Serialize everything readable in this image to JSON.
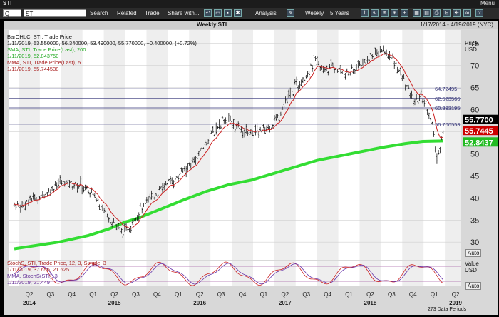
{
  "titlebar": {
    "app": "STI",
    "menu_label": "Menu"
  },
  "toolbar": {
    "symbol_type": "Q",
    "symbol": "STI",
    "search": "Search",
    "related": "Related",
    "trade": "Trade",
    "share": "Share with...",
    "analysis": "Analysis",
    "period": "Weekly",
    "range": "5 Years"
  },
  "chart_header": {
    "title": "Weekly STI",
    "date_range": "1/17/2014 - 4/19/2019 (NYC)"
  },
  "legend": {
    "bar": "BarOHLC, STI, Trade Price",
    "bar_values": "1/11/2019, 53.550000, 56.340000, 53.490000, 55.770000, +0.400000, (+0.72%)",
    "sma": "SMA, STI, Trade Price(Last), 200",
    "sma_value": "1/11/2019, 52.843750",
    "mma": "MMA, STI, Trade Price(Last), 5",
    "mma_value": "1/11/2019, 55.744538",
    "stoch": "StochS, STI, Trade Price, 12, 3, Simple, 3",
    "stoch_value": "1/11/2019, 37.656, 21.625",
    "mma_stoch": "MMA, StochS(STI), 3",
    "mma_stoch_value": "1/11/2019, 21.449"
  },
  "axis": {
    "price_label_1": "Price",
    "price_label_2": "USD",
    "value_label_1": "Value",
    "value_label_2": "USD",
    "auto": "Auto",
    "data_rows": "273 Data Periods"
  },
  "colors": {
    "price_bars": "#000000",
    "sma": "#33dd33",
    "mma": "#cc2222",
    "stoch_line": "#cc2222",
    "stoch_mma": "#6633aa",
    "last_price_box": "#000000",
    "mma_box": "#cc0000",
    "sma_box": "#22bb22"
  },
  "chart_data": {
    "type": "ohlc",
    "price_ylim": [
      26,
      78
    ],
    "price_ticks": [
      30,
      35,
      40,
      45,
      50,
      55,
      60,
      65,
      70,
      75
    ],
    "x_quarters": [
      "Q2",
      "Q3",
      "Q4",
      "Q1",
      "Q2",
      "Q3",
      "Q4",
      "Q1",
      "Q2",
      "Q3",
      "Q4",
      "Q1",
      "Q2",
      "Q3",
      "Q4",
      "Q1",
      "Q2",
      "Q3",
      "Q4",
      "Q1",
      "Q2"
    ],
    "x_years": [
      "2014",
      "2015",
      "2016",
      "2017",
      "2018",
      "2019"
    ],
    "hlines": [
      {
        "value": 64.72495,
        "label": "64.72495"
      },
      {
        "value": 62.523566,
        "label": "62.523566"
      },
      {
        "value": 60.393195,
        "label": "60.393195"
      },
      {
        "value": 56.700553,
        "label": "56.700553"
      }
    ],
    "last_price": "55.7700",
    "mma_last": "55.7445",
    "sma_last": "52.8437"
  }
}
